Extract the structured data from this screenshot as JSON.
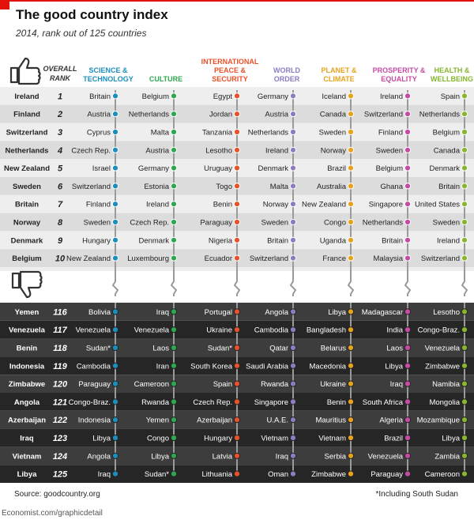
{
  "title": "The good country index",
  "subtitle": "2014, rank out of 125 countries",
  "source": "Source: goodcountry.org",
  "footnote": "*Including South Sudan",
  "credit": "Economist.com/graphicdetail",
  "colors": {
    "science": "#1a8fbd",
    "culture": "#2ea84e",
    "international": "#e8512a",
    "world": "#8e7cc3",
    "planet": "#e8a31b",
    "prosperity": "#c64aa6",
    "health": "#86b72d",
    "top_row_light": "#eeeeee",
    "top_row_dark": "#dcdcdc",
    "bottom_row_light": "#3d3d3d",
    "bottom_row_dark": "#262626"
  },
  "chart_data": {
    "type": "table",
    "overall_rank_header": [
      "OVERALL",
      "RANK"
    ],
    "categories": [
      {
        "key": "science",
        "label": [
          "SCIENCE &",
          "TECHNOLOGY"
        ]
      },
      {
        "key": "culture",
        "label": [
          "CULTURE"
        ]
      },
      {
        "key": "international",
        "label": [
          "INTERNATIONAL",
          "PEACE &",
          "SECURITY"
        ]
      },
      {
        "key": "world",
        "label": [
          "WORLD",
          "ORDER"
        ]
      },
      {
        "key": "planet",
        "label": [
          "PLANET &",
          "CLIMATE"
        ]
      },
      {
        "key": "prosperity",
        "label": [
          "PROSPERITY &",
          "EQUALITY"
        ]
      },
      {
        "key": "health",
        "label": [
          "HEALTH &",
          "WELLBEING"
        ]
      }
    ],
    "top_section": {
      "countries": [
        "Ireland",
        "Finland",
        "Switzerland",
        "Netherlands",
        "New Zealand",
        "Sweden",
        "Britain",
        "Norway",
        "Denmark",
        "Belgium"
      ],
      "ranks": [
        1,
        2,
        3,
        4,
        5,
        6,
        7,
        8,
        9,
        10
      ],
      "by_category": {
        "science": [
          "Britain",
          "Austria",
          "Cyprus",
          "Czech Rep.",
          "Israel",
          "Switzerland",
          "Finland",
          "Sweden",
          "Hungary",
          "New Zealand"
        ],
        "culture": [
          "Belgium",
          "Netherlands",
          "Malta",
          "Austria",
          "Germany",
          "Estonia",
          "Ireland",
          "Czech Rep.",
          "Denmark",
          "Luxembourg"
        ],
        "international": [
          "Egypt",
          "Jordan",
          "Tanzania",
          "Lesotho",
          "Uruguay",
          "Togo",
          "Benin",
          "Paraguay",
          "Nigeria",
          "Ecuador"
        ],
        "world": [
          "Germany",
          "Austria",
          "Netherlands",
          "Ireland",
          "Denmark",
          "Malta",
          "Norway",
          "Sweden",
          "Britain",
          "Switzerland"
        ],
        "planet": [
          "Iceland",
          "Canada",
          "Sweden",
          "Norway",
          "Brazil",
          "Australia",
          "New Zealand",
          "Congo",
          "Uganda",
          "France"
        ],
        "prosperity": [
          "Ireland",
          "Switzerland",
          "Finland",
          "Sweden",
          "Belgium",
          "Ghana",
          "Singapore",
          "Netherlands",
          "Britain",
          "Malaysia"
        ],
        "health": [
          "Spain",
          "Netherlands",
          "Belgium",
          "Canada",
          "Denmark",
          "Britain",
          "United States",
          "Sweden",
          "Ireland",
          "Switzerland"
        ]
      }
    },
    "bottom_section": {
      "countries": [
        "Yemen",
        "Venezuela",
        "Benin",
        "Indonesia",
        "Zimbabwe",
        "Angola",
        "Azerbaijan",
        "Iraq",
        "Vietnam",
        "Libya"
      ],
      "ranks": [
        116,
        117,
        118,
        119,
        120,
        121,
        122,
        123,
        124,
        125
      ],
      "by_category": {
        "science": [
          "Bolivia",
          "Venezuela",
          "Sudan*",
          "Cambodia",
          "Paraguay",
          "Congo-Braz.",
          "Indonesia",
          "Libya",
          "Angola",
          "Iraq"
        ],
        "culture": [
          "Iraq",
          "Venezuela",
          "Laos",
          "Iran",
          "Cameroon",
          "Rwanda",
          "Yemen",
          "Congo",
          "Libya",
          "Sudan*"
        ],
        "international": [
          "Portugal",
          "Ukraine",
          "Sudan*",
          "South Korea",
          "Spain",
          "Czech Rep.",
          "Azerbaijan",
          "Hungary",
          "Latvia",
          "Lithuania"
        ],
        "world": [
          "Angola",
          "Cambodia",
          "Qatar",
          "Saudi Arabia",
          "Rwanda",
          "Singapore",
          "U.A.E.",
          "Vietnam",
          "Iraq",
          "Oman"
        ],
        "planet": [
          "Libya",
          "Bangladesh",
          "Belarus",
          "Macedonia",
          "Ukraine",
          "Benin",
          "Mauritius",
          "Vietnam",
          "Serbia",
          "Zimbabwe"
        ],
        "prosperity": [
          "Madagascar",
          "India",
          "Laos",
          "Libya",
          "Iraq",
          "South Africa",
          "Algeria",
          "Brazil",
          "Venezuela",
          "Paraguay"
        ],
        "health": [
          "Lesotho",
          "Congo-Braz.",
          "Venezuela",
          "Zimbabwe",
          "Namibia",
          "Mongolia",
          "Mozambique",
          "Libya",
          "Zambia",
          "Cameroon"
        ]
      }
    }
  }
}
